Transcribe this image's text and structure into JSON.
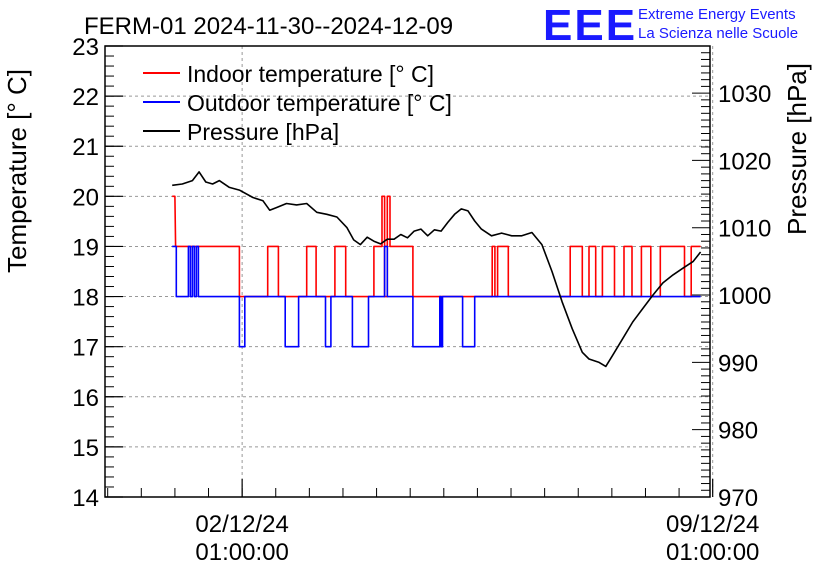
{
  "header": {
    "title": "FERM-01 2024-11-30--2024-12-09",
    "logo_text": "EEE",
    "logo_line1": "Extreme Energy Events",
    "logo_line2": "La Scienza nelle Scuole",
    "logo_color": "#1a1aff"
  },
  "chart_data": {
    "type": "line",
    "title": "FERM-01 2024-11-30--2024-12-09",
    "xlabel": "",
    "ylabel_left": "Temperature [° C]",
    "ylabel_right": "Pressure [hPa]",
    "ylim_left": [
      14,
      23
    ],
    "ylim_right": [
      970,
      1037
    ],
    "left_ticks": [
      14,
      15,
      16,
      17,
      18,
      19,
      20,
      21,
      22,
      23
    ],
    "right_ticks": [
      970,
      980,
      990,
      1000,
      1010,
      1020,
      1030
    ],
    "x_unit": "days since 2024-11-30 00:00",
    "xlim": [
      0,
      9.0
    ],
    "x_ticks": [
      {
        "x": 2.04,
        "line1": "02/12/24",
        "line2": "01:00:00"
      },
      {
        "x": 9.04,
        "line1": "09/12/24",
        "line2": "01:00:00"
      }
    ],
    "grid": true,
    "legend": [
      {
        "label": "Indoor temperature [° C]",
        "color": "#ff0000"
      },
      {
        "label": "Outdoor temperature [° C]",
        "color": "#0000ff"
      },
      {
        "label": "Pressure [hPa]",
        "color": "#000000"
      }
    ],
    "series": [
      {
        "name": "Indoor temperature [° C]",
        "axis": "left",
        "color": "#ff0000",
        "points": [
          [
            1.0,
            20
          ],
          [
            1.04,
            20
          ],
          [
            1.05,
            19
          ],
          [
            2.0,
            19
          ],
          [
            2.0,
            18
          ],
          [
            2.42,
            18
          ],
          [
            2.42,
            19
          ],
          [
            2.58,
            19
          ],
          [
            2.58,
            18
          ],
          [
            3.0,
            18
          ],
          [
            3.0,
            19
          ],
          [
            3.14,
            19
          ],
          [
            3.14,
            18
          ],
          [
            3.42,
            18
          ],
          [
            3.42,
            19
          ],
          [
            3.58,
            19
          ],
          [
            3.58,
            18
          ],
          [
            4.0,
            18
          ],
          [
            4.0,
            19
          ],
          [
            4.12,
            19
          ],
          [
            4.12,
            20
          ],
          [
            4.16,
            20
          ],
          [
            4.16,
            18
          ],
          [
            4.2,
            18
          ],
          [
            4.2,
            20
          ],
          [
            4.24,
            20
          ],
          [
            4.24,
            19
          ],
          [
            4.58,
            19
          ],
          [
            4.58,
            18
          ],
          [
            5.76,
            18
          ],
          [
            5.76,
            19
          ],
          [
            5.8,
            19
          ],
          [
            5.8,
            18
          ],
          [
            5.84,
            18
          ],
          [
            5.84,
            19
          ],
          [
            6.0,
            19
          ],
          [
            6.0,
            18
          ],
          [
            6.92,
            18
          ],
          [
            6.92,
            19
          ],
          [
            7.1,
            19
          ],
          [
            7.1,
            18
          ],
          [
            7.2,
            18
          ],
          [
            7.2,
            19
          ],
          [
            7.3,
            19
          ],
          [
            7.3,
            18
          ],
          [
            7.4,
            18
          ],
          [
            7.4,
            19
          ],
          [
            7.58,
            19
          ],
          [
            7.58,
            18
          ],
          [
            7.72,
            18
          ],
          [
            7.72,
            19
          ],
          [
            7.84,
            19
          ],
          [
            7.84,
            18
          ],
          [
            7.98,
            18
          ],
          [
            7.98,
            19
          ],
          [
            8.12,
            19
          ],
          [
            8.12,
            18
          ],
          [
            8.26,
            18
          ],
          [
            8.26,
            19
          ],
          [
            8.62,
            19
          ],
          [
            8.62,
            18
          ],
          [
            8.72,
            18
          ],
          [
            8.72,
            19
          ],
          [
            8.86,
            19
          ]
        ]
      },
      {
        "name": "Outdoor temperature [° C]",
        "axis": "left",
        "color": "#0000ff",
        "points": [
          [
            1.0,
            19
          ],
          [
            1.06,
            19
          ],
          [
            1.06,
            18
          ],
          [
            1.24,
            18
          ],
          [
            1.24,
            19
          ],
          [
            1.27,
            19
          ],
          [
            1.27,
            18
          ],
          [
            1.3,
            18
          ],
          [
            1.3,
            19
          ],
          [
            1.33,
            19
          ],
          [
            1.33,
            18
          ],
          [
            1.36,
            18
          ],
          [
            1.36,
            19
          ],
          [
            1.39,
            19
          ],
          [
            1.39,
            18
          ],
          [
            2.0,
            18
          ],
          [
            2.0,
            17
          ],
          [
            2.08,
            17
          ],
          [
            2.08,
            18
          ],
          [
            2.68,
            18
          ],
          [
            2.68,
            17
          ],
          [
            2.88,
            17
          ],
          [
            2.88,
            18
          ],
          [
            3.28,
            18
          ],
          [
            3.28,
            17
          ],
          [
            3.36,
            17
          ],
          [
            3.36,
            18
          ],
          [
            3.68,
            18
          ],
          [
            3.68,
            17
          ],
          [
            3.92,
            17
          ],
          [
            3.92,
            18
          ],
          [
            4.16,
            18
          ],
          [
            4.16,
            19
          ],
          [
            4.2,
            19
          ],
          [
            4.2,
            18
          ],
          [
            4.58,
            18
          ],
          [
            4.58,
            17
          ],
          [
            4.98,
            17
          ],
          [
            4.98,
            18
          ],
          [
            5.0,
            18
          ],
          [
            5.0,
            17
          ],
          [
            5.02,
            17
          ],
          [
            5.02,
            18
          ],
          [
            5.32,
            18
          ],
          [
            5.32,
            17
          ],
          [
            5.5,
            17
          ],
          [
            5.5,
            18
          ],
          [
            8.86,
            18
          ]
        ]
      },
      {
        "name": "Pressure [hPa]",
        "axis": "right",
        "color": "#000000",
        "points": [
          [
            1.0,
            1016.3
          ],
          [
            1.15,
            1016.5
          ],
          [
            1.3,
            1017.0
          ],
          [
            1.4,
            1018.3
          ],
          [
            1.5,
            1016.8
          ],
          [
            1.6,
            1016.5
          ],
          [
            1.7,
            1017.0
          ],
          [
            1.85,
            1016.0
          ],
          [
            2.0,
            1015.6
          ],
          [
            2.2,
            1014.5
          ],
          [
            2.35,
            1014.0
          ],
          [
            2.45,
            1012.6
          ],
          [
            2.55,
            1013.0
          ],
          [
            2.7,
            1013.6
          ],
          [
            2.85,
            1013.4
          ],
          [
            3.0,
            1013.6
          ],
          [
            3.15,
            1012.3
          ],
          [
            3.3,
            1012.0
          ],
          [
            3.45,
            1011.6
          ],
          [
            3.6,
            1010.0
          ],
          [
            3.7,
            1008.2
          ],
          [
            3.8,
            1007.5
          ],
          [
            3.9,
            1008.6
          ],
          [
            4.0,
            1008.0
          ],
          [
            4.1,
            1007.6
          ],
          [
            4.2,
            1008.3
          ],
          [
            4.3,
            1008.3
          ],
          [
            4.4,
            1009.0
          ],
          [
            4.5,
            1008.5
          ],
          [
            4.6,
            1009.5
          ],
          [
            4.7,
            1009.8
          ],
          [
            4.8,
            1008.8
          ],
          [
            4.9,
            1009.7
          ],
          [
            5.0,
            1009.5
          ],
          [
            5.1,
            1010.8
          ],
          [
            5.2,
            1012.0
          ],
          [
            5.3,
            1012.8
          ],
          [
            5.4,
            1012.5
          ],
          [
            5.5,
            1011.0
          ],
          [
            5.6,
            1009.8
          ],
          [
            5.75,
            1008.8
          ],
          [
            5.9,
            1009.2
          ],
          [
            6.05,
            1008.8
          ],
          [
            6.2,
            1008.8
          ],
          [
            6.35,
            1009.3
          ],
          [
            6.5,
            1007.5
          ],
          [
            6.65,
            1003.5
          ],
          [
            6.8,
            999.0
          ],
          [
            6.95,
            995.0
          ],
          [
            7.1,
            991.5
          ],
          [
            7.2,
            990.5
          ],
          [
            7.35,
            990.0
          ],
          [
            7.45,
            989.4
          ],
          [
            7.55,
            991.0
          ],
          [
            7.7,
            993.5
          ],
          [
            7.85,
            996.0
          ],
          [
            8.0,
            998.0
          ],
          [
            8.15,
            1000.0
          ],
          [
            8.3,
            1001.8
          ],
          [
            8.45,
            1003.0
          ],
          [
            8.6,
            1004.0
          ],
          [
            8.75,
            1005.0
          ],
          [
            8.86,
            1006.4
          ]
        ]
      }
    ]
  }
}
